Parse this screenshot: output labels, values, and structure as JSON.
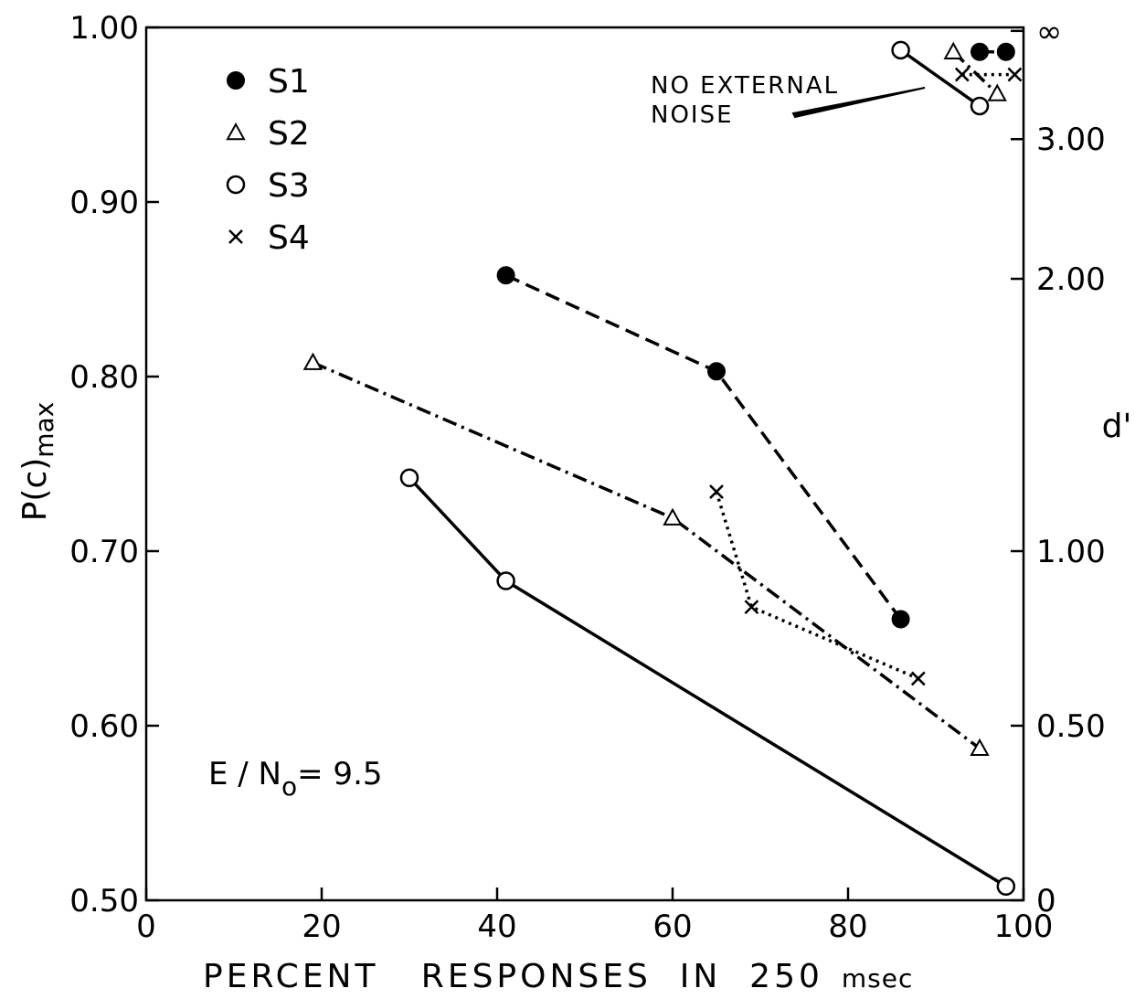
{
  "chart_data": {
    "type": "line",
    "xlabel": "PERCENT   RESPONSES  IN  250",
    "xlabel_unit": "msec",
    "ylabel": "P(c)",
    "ylabel_sub": "max",
    "y2label": "d'",
    "xlim": [
      0,
      100
    ],
    "ylim": [
      0.5,
      1.0
    ],
    "x_ticks": [
      "0",
      "20",
      "40",
      "60",
      "80",
      "100"
    ],
    "x_tick_values": [
      0,
      20,
      40,
      60,
      80,
      100
    ],
    "y_ticks": [
      "0.50",
      "0.60",
      "0.70",
      "0.80",
      "0.90",
      "1.00"
    ],
    "y_tick_values": [
      0.5,
      0.6,
      0.7,
      0.8,
      0.9,
      1.0
    ],
    "y2_ticks": [
      "0",
      "0.50",
      "1.00",
      "2.00",
      "3.00",
      "∞"
    ],
    "y2_tick_positions": [
      0.5,
      0.6,
      0.7,
      0.856,
      0.936,
      0.998
    ],
    "grid": false,
    "legend_position": "top-left",
    "series": [
      {
        "name": "S1",
        "marker": "filled-circle",
        "line": "dashed",
        "x": [
          41,
          65,
          86
        ],
        "y": [
          0.858,
          0.803,
          0.661
        ]
      },
      {
        "name": "S2",
        "marker": "triangle",
        "line": "dash-dot",
        "x": [
          19,
          60,
          95
        ],
        "y": [
          0.808,
          0.719,
          0.587
        ]
      },
      {
        "name": "S3",
        "marker": "open-circle",
        "line": "solid",
        "x": [
          30,
          41,
          98
        ],
        "y": [
          0.742,
          0.683,
          0.508
        ]
      },
      {
        "name": "S4",
        "marker": "cross",
        "line": "dotted",
        "x": [
          65,
          69,
          88
        ],
        "y": [
          0.734,
          0.668,
          0.627
        ]
      }
    ],
    "no_noise_series": [
      {
        "name": "S1",
        "marker": "filled-circle",
        "line": "dashed",
        "x": [
          95,
          98
        ],
        "y": [
          0.986,
          0.986
        ]
      },
      {
        "name": "S2",
        "marker": "triangle",
        "line": "dash-dot",
        "x": [
          92,
          97
        ],
        "y": [
          0.986,
          0.962
        ]
      },
      {
        "name": "S3",
        "marker": "open-circle",
        "line": "solid",
        "x": [
          86,
          95
        ],
        "y": [
          0.987,
          0.955
        ]
      },
      {
        "name": "S4",
        "marker": "cross",
        "line": "dotted",
        "x": [
          93,
          99
        ],
        "y": [
          0.973,
          0.973
        ]
      }
    ],
    "annotations": {
      "no_noise_line1": "NO EXTERNAL",
      "no_noise_line2": "NOISE",
      "en_main": "E / N",
      "en_sub": "o",
      "en_value": "= 9.5"
    }
  }
}
